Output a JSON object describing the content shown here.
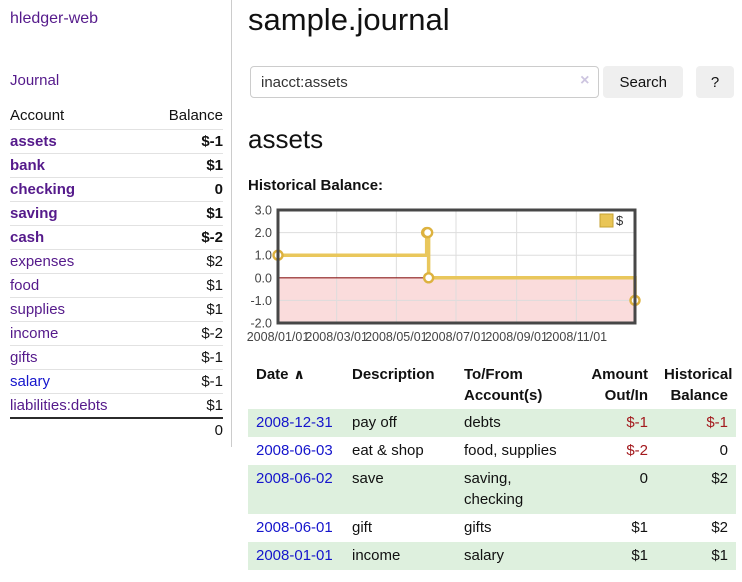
{
  "app": {
    "brand": "hledger-web"
  },
  "sidebar": {
    "journal_label": "Journal",
    "accounts_table": {
      "headers": {
        "account": "Account",
        "balance": "Balance"
      },
      "rows": [
        {
          "name": "assets",
          "indent": 1,
          "balance": "$-1",
          "bold": true,
          "balance_style": "neg-strong"
        },
        {
          "name": "bank",
          "indent": 2,
          "balance": "$1",
          "bold": true,
          "balance_style": ""
        },
        {
          "name": "checking",
          "indent": 3,
          "balance": "0",
          "bold": true,
          "balance_style": ""
        },
        {
          "name": "saving",
          "indent": 3,
          "balance": "$1",
          "bold": true,
          "balance_style": ""
        },
        {
          "name": "cash",
          "indent": 2,
          "balance": "$-2",
          "bold": true,
          "balance_style": "neg-strong"
        },
        {
          "name": "expenses",
          "indent": 1,
          "balance": "$2",
          "bold": false,
          "balance_style": ""
        },
        {
          "name": "food",
          "indent": 2,
          "balance": "$1",
          "bold": false,
          "balance_style": ""
        },
        {
          "name": "supplies",
          "indent": 2,
          "balance": "$1",
          "bold": false,
          "balance_style": ""
        },
        {
          "name": "income",
          "indent": 1,
          "balance": "$-2",
          "bold": false,
          "balance_style": "neg-faded"
        },
        {
          "name": "gifts",
          "indent": 2,
          "balance": "$-1",
          "bold": false,
          "balance_style": "neg-faded"
        },
        {
          "name": "salary",
          "indent": 2,
          "balance": "$-1",
          "bold": false,
          "balance_style": "neg-faded",
          "link_blue": true
        },
        {
          "name": "liabilities:debts",
          "indent": 1,
          "balance": "$1",
          "bold": false,
          "balance_style": ""
        }
      ],
      "total": "0"
    }
  },
  "header": {
    "title": "sample.journal"
  },
  "search": {
    "value": "inacct:assets",
    "clear_icon": "×",
    "button": "Search",
    "help_button": "?"
  },
  "section": {
    "title": "assets"
  },
  "chart_data": {
    "type": "line",
    "title": "Historical Balance:",
    "step": true,
    "xlim": [
      "2008-01-01",
      "2008-12-31"
    ],
    "ylim": [
      -2,
      3
    ],
    "grid": true,
    "x_ticks": [
      {
        "label": "2008/01/01",
        "date": "2008-01-01"
      },
      {
        "label": "2008/03/01",
        "date": "2008-03-01"
      },
      {
        "label": "2008/05/01",
        "date": "2008-05-01"
      },
      {
        "label": "2008/07/01",
        "date": "2008-07-01"
      },
      {
        "label": "2008/09/01",
        "date": "2008-09-01"
      },
      {
        "label": "2008/11/01",
        "date": "2008-11-01"
      }
    ],
    "y_ticks": [
      {
        "label": "3.0",
        "value": 3
      },
      {
        "label": "2.0",
        "value": 2
      },
      {
        "label": "1.0",
        "value": 1
      },
      {
        "label": "0.0",
        "value": 0
      },
      {
        "label": "-1.0",
        "value": -1
      },
      {
        "label": "-2.0",
        "value": -2
      }
    ],
    "series": [
      {
        "name": "$",
        "color": "#e9c75c",
        "marker_color": "#ddb23f",
        "points": [
          {
            "date": "2008-01-01",
            "value": 1
          },
          {
            "date": "2008-06-01",
            "value": 2
          },
          {
            "date": "2008-06-02",
            "value": 2
          },
          {
            "date": "2008-06-03",
            "value": 0
          },
          {
            "date": "2008-12-31",
            "value": -1
          }
        ]
      }
    ],
    "legend": {
      "label": "$",
      "position": "top-right",
      "swatch_color": "#e9c556",
      "swatch_border": "#c5a233"
    },
    "negative_region_fill": "#fadcdc",
    "zero_line_color": "#8b1a1a",
    "grid_color": "#dddddd",
    "border_color": "#474747",
    "tick_text_color": "#444444"
  },
  "transactions": {
    "columns": [
      {
        "label": "Date",
        "sort_icon": "∧"
      },
      {
        "label": "Description"
      },
      {
        "label": "To/From Account(s)"
      },
      {
        "label": "Amount Out/In"
      },
      {
        "label": "Historical Balance"
      }
    ],
    "rows": [
      {
        "date": "2008-12-31",
        "description": "pay off",
        "accounts": "debts",
        "amount": "$-1",
        "amount_neg": true,
        "balance": "$-1",
        "balance_neg": true,
        "striped": true
      },
      {
        "date": "2008-06-03",
        "description": "eat & shop",
        "accounts": "food, supplies",
        "amount": "$-2",
        "amount_neg": true,
        "balance": "0",
        "balance_neg": false,
        "striped": false
      },
      {
        "date": "2008-06-02",
        "description": "save",
        "accounts": "saving, checking",
        "amount": "0",
        "amount_neg": false,
        "balance": "$2",
        "balance_neg": false,
        "striped": true
      },
      {
        "date": "2008-06-01",
        "description": "gift",
        "accounts": "gifts",
        "amount": "$1",
        "amount_neg": false,
        "balance": "$2",
        "balance_neg": false,
        "striped": false
      },
      {
        "date": "2008-01-01",
        "description": "income",
        "accounts": "salary",
        "amount": "$1",
        "amount_neg": false,
        "balance": "$1",
        "balance_neg": false,
        "striped": true
      }
    ]
  },
  "colors": {
    "link_purple": "#551a8b",
    "link_blue": "#1515cc",
    "negative_strong": "#a3191d",
    "negative_faded": "#c28585",
    "row_stripe_green": "#def0de",
    "chart_gold": "#e9c75c",
    "chart_negative_pink": "#fadcdc"
  }
}
